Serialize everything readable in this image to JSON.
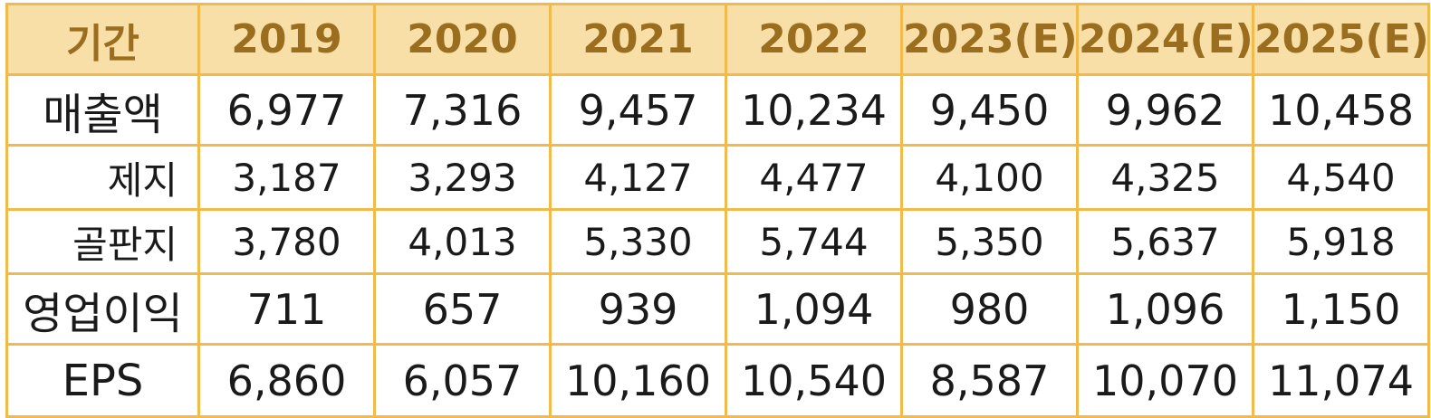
{
  "table": {
    "header": [
      "기간",
      "2019",
      "2020",
      "2021",
      "2022",
      "2023(E)",
      "2024(E)",
      "2025(E)"
    ],
    "rows": [
      {
        "label": "매출액",
        "values": [
          "6,977",
          "7,316",
          "9,457",
          "10,234",
          "9,450",
          "9,962",
          "10,458"
        ]
      },
      {
        "label": "제지",
        "values": [
          "3,187",
          "3,293",
          "4,127",
          "4,477",
          "4,100",
          "4,325",
          "4,540"
        ]
      },
      {
        "label": "골판지",
        "values": [
          "3,780",
          "4,013",
          "5,330",
          "5,744",
          "5,350",
          "5,637",
          "5,918"
        ]
      },
      {
        "label": "영업이익",
        "values": [
          "711",
          "657",
          "939",
          "1,094",
          "980",
          "1,096",
          "1,150"
        ]
      },
      {
        "label": "EPS",
        "values": [
          "6,860",
          "6,057",
          "10,160",
          "10,540",
          "8,587",
          "10,070",
          "11,074"
        ]
      }
    ]
  },
  "colors": {
    "border": "#f2ba4a",
    "header_bg": "#f8dfa8",
    "header_text": "#9a6e1e"
  }
}
